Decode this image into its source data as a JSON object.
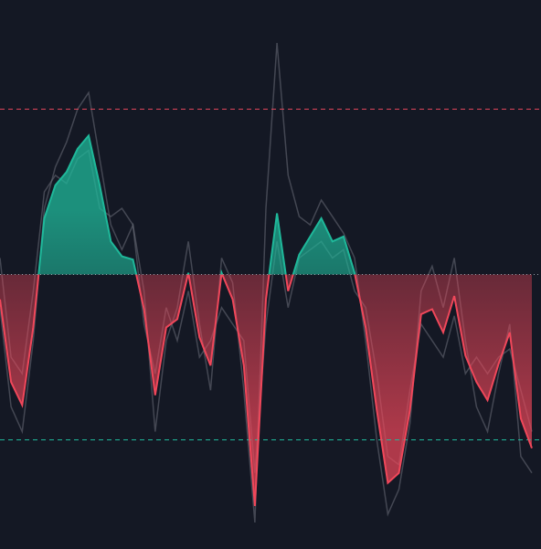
{
  "chart_data": {
    "type": "line",
    "ylim": [
      -166,
      166
    ],
    "levels": [
      {
        "value": 100,
        "color": "#e0455a",
        "style": "dashed"
      },
      {
        "value": 0,
        "color": "#9aa0a8",
        "style": "dotted"
      },
      {
        "value": -100,
        "color": "#1fb89a",
        "style": "dashed"
      }
    ],
    "up_color": "#1fb89a",
    "down_color": "#f0475a",
    "ghost_color": "#6b6f7a",
    "values": [
      -15,
      -65,
      -79,
      -32,
      34,
      54,
      62,
      76,
      84,
      54,
      20,
      11,
      9,
      -21,
      -73,
      -32,
      -27,
      1,
      -38,
      -55,
      1,
      -15,
      -55,
      -140,
      -15,
      37,
      -10,
      12,
      23,
      34,
      20,
      23,
      1,
      -32,
      -82,
      -126,
      -120,
      -82,
      -24,
      -21,
      -35,
      -13,
      -49,
      -65,
      -76,
      -54,
      -35,
      -87,
      -105
    ],
    "ghosts": [
      [
        -20,
        -80,
        -95,
        -40,
        40,
        65,
        80,
        100,
        110,
        70,
        30,
        15,
        30,
        -10,
        -95,
        -40,
        -20,
        20,
        -30,
        -70,
        10,
        -5,
        -70,
        -150,
        40,
        140,
        60,
        35,
        30,
        45,
        35,
        25,
        10,
        -40,
        -100,
        -145,
        -130,
        -90,
        -10,
        5,
        -20,
        10,
        -40,
        -80,
        -95,
        -60,
        -30,
        -110,
        -120
      ],
      [
        10,
        -50,
        -60,
        -10,
        50,
        60,
        55,
        70,
        75,
        40,
        35,
        40,
        30,
        -30,
        -60,
        -20,
        -40,
        -10,
        -50,
        -40,
        -20,
        -30,
        -40,
        -120,
        -30,
        20,
        -20,
        10,
        15,
        20,
        10,
        15,
        -10,
        -20,
        -60,
        -110,
        -115,
        -70,
        -30,
        -40,
        -50,
        -25,
        -60,
        -50,
        -60,
        -50,
        -45,
        -70,
        -95
      ]
    ]
  }
}
